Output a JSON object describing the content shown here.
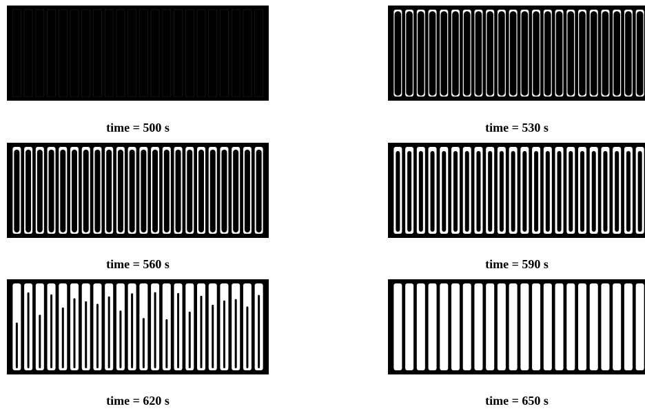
{
  "figure": {
    "panels": [
      {
        "caption": "time = 500 s"
      },
      {
        "caption": "time = 530 s"
      },
      {
        "caption": "time = 560 s"
      },
      {
        "caption": "time = 590 s"
      },
      {
        "caption": "time = 620 s"
      },
      {
        "caption": "time = 650 s"
      }
    ]
  }
}
